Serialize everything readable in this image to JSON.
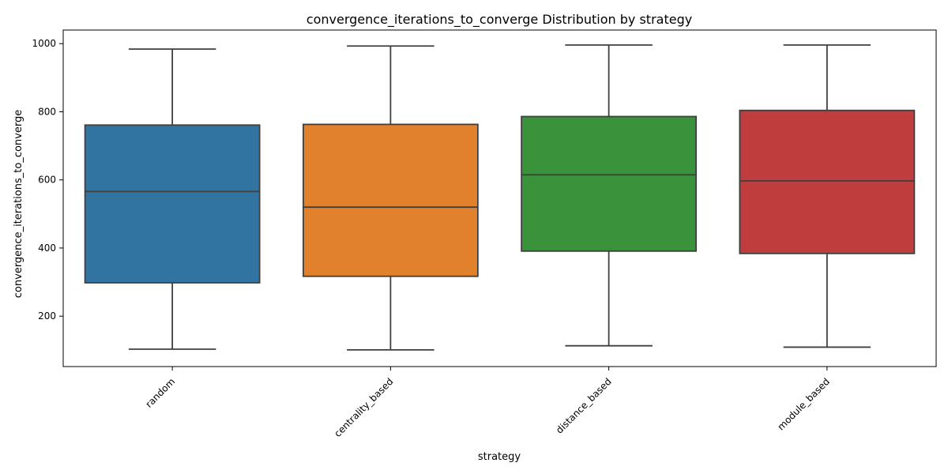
{
  "chart_data": {
    "type": "box",
    "title": "convergence_iterations_to_converge Distribution by strategy",
    "xlabel": "strategy",
    "ylabel": "convergence_iterations_to_converge",
    "ylim": [
      52,
      1040
    ],
    "yticks": [
      200,
      400,
      600,
      800,
      1000
    ],
    "grid": false,
    "legend": "none",
    "categories": [
      "random",
      "centrality_based",
      "distance_based",
      "module_based"
    ],
    "boxes": [
      {
        "category": "random",
        "whisker_low": 103,
        "q1": 298,
        "median": 566,
        "q3": 761,
        "whisker_high": 984,
        "color": "#3274a1"
      },
      {
        "category": "centrality_based",
        "whisker_low": 101,
        "q1": 317,
        "median": 520,
        "q3": 763,
        "whisker_high": 993,
        "color": "#e1812c"
      },
      {
        "category": "distance_based",
        "whisker_low": 113,
        "q1": 391,
        "median": 615,
        "q3": 786,
        "whisker_high": 996,
        "color": "#3a923a"
      },
      {
        "category": "module_based",
        "whisker_low": 109,
        "q1": 384,
        "median": 597,
        "q3": 804,
        "whisker_high": 996,
        "color": "#c03d3e"
      }
    ]
  }
}
